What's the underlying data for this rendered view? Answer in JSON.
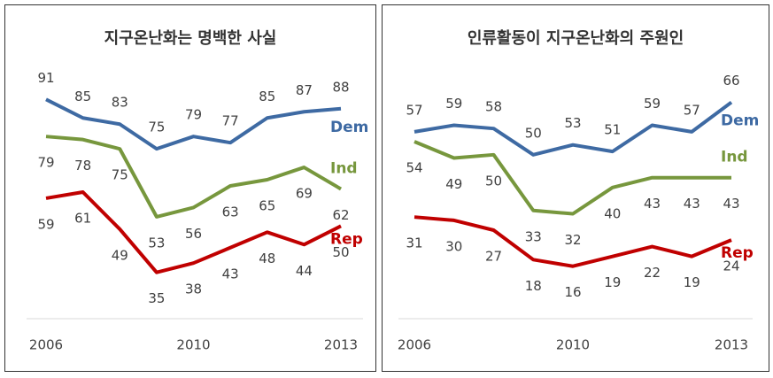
{
  "chart_data": [
    {
      "type": "line",
      "title": "지구온난화는 명백한 사실",
      "categories": [
        "2006",
        null,
        null,
        null,
        "2010",
        null,
        null,
        null,
        "2013"
      ],
      "ylim": [
        20,
        106
      ],
      "series": [
        {
          "name": "Dem",
          "color": "#3e6aa3",
          "values": [
            91,
            85,
            83,
            75,
            79,
            77,
            85,
            87,
            88
          ]
        },
        {
          "name": "Ind",
          "color": "#77973d",
          "values": [
            79,
            78,
            75,
            53,
            56,
            63,
            65,
            69,
            62
          ]
        },
        {
          "name": "Rep",
          "color": "#c00000",
          "values": [
            59,
            61,
            49,
            35,
            38,
            43,
            48,
            44,
            50
          ]
        }
      ]
    },
    {
      "type": "line",
      "title": "인류활동이 지구온난화의 주원인",
      "categories": [
        "2006",
        null,
        null,
        null,
        "2010",
        null,
        null,
        null,
        "2013"
      ],
      "ylim": [
        0,
        81
      ],
      "series": [
        {
          "name": "Dem",
          "color": "#3e6aa3",
          "values": [
            57,
            59,
            58,
            50,
            53,
            51,
            59,
            57,
            66
          ]
        },
        {
          "name": "Ind",
          "color": "#77973d",
          "values": [
            54,
            49,
            50,
            33,
            32,
            40,
            43,
            43,
            43
          ]
        },
        {
          "name": "Rep",
          "color": "#c00000",
          "values": [
            31,
            30,
            27,
            18,
            16,
            19,
            22,
            19,
            24
          ]
        }
      ]
    }
  ]
}
